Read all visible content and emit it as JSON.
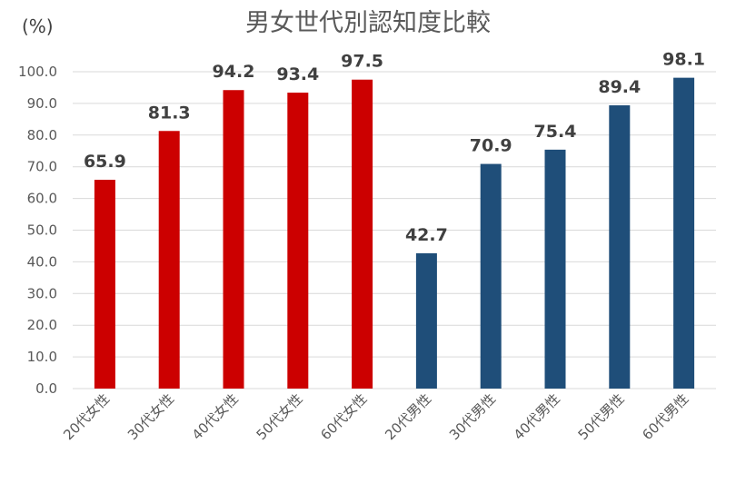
{
  "chart_data": {
    "type": "bar",
    "title": "男女世代別認知度比較",
    "unit_label": "(%)",
    "categories": [
      "20代女性",
      "30代女性",
      "40代女性",
      "50代女性",
      "60代女性",
      "20代男性",
      "30代男性",
      "40代男性",
      "50代男性",
      "60代男性"
    ],
    "values": [
      65.9,
      81.3,
      94.2,
      93.4,
      97.5,
      42.7,
      70.9,
      75.4,
      89.4,
      98.1
    ],
    "data_labels": [
      "65.9",
      "81.3",
      "94.2",
      "93.4",
      "97.5",
      "42.7",
      "70.9",
      "75.4",
      "89.4",
      "98.1"
    ],
    "bar_colors": [
      "#cc0000",
      "#cc0000",
      "#cc0000",
      "#cc0000",
      "#cc0000",
      "#1f4e79",
      "#1f4e79",
      "#1f4e79",
      "#1f4e79",
      "#1f4e79"
    ],
    "ylim": [
      0,
      100
    ],
    "yticks": [
      "0.0",
      "10.0",
      "20.0",
      "30.0",
      "40.0",
      "50.0",
      "60.0",
      "70.0",
      "80.0",
      "90.0",
      "100.0"
    ],
    "grid": true,
    "legend": "none"
  }
}
